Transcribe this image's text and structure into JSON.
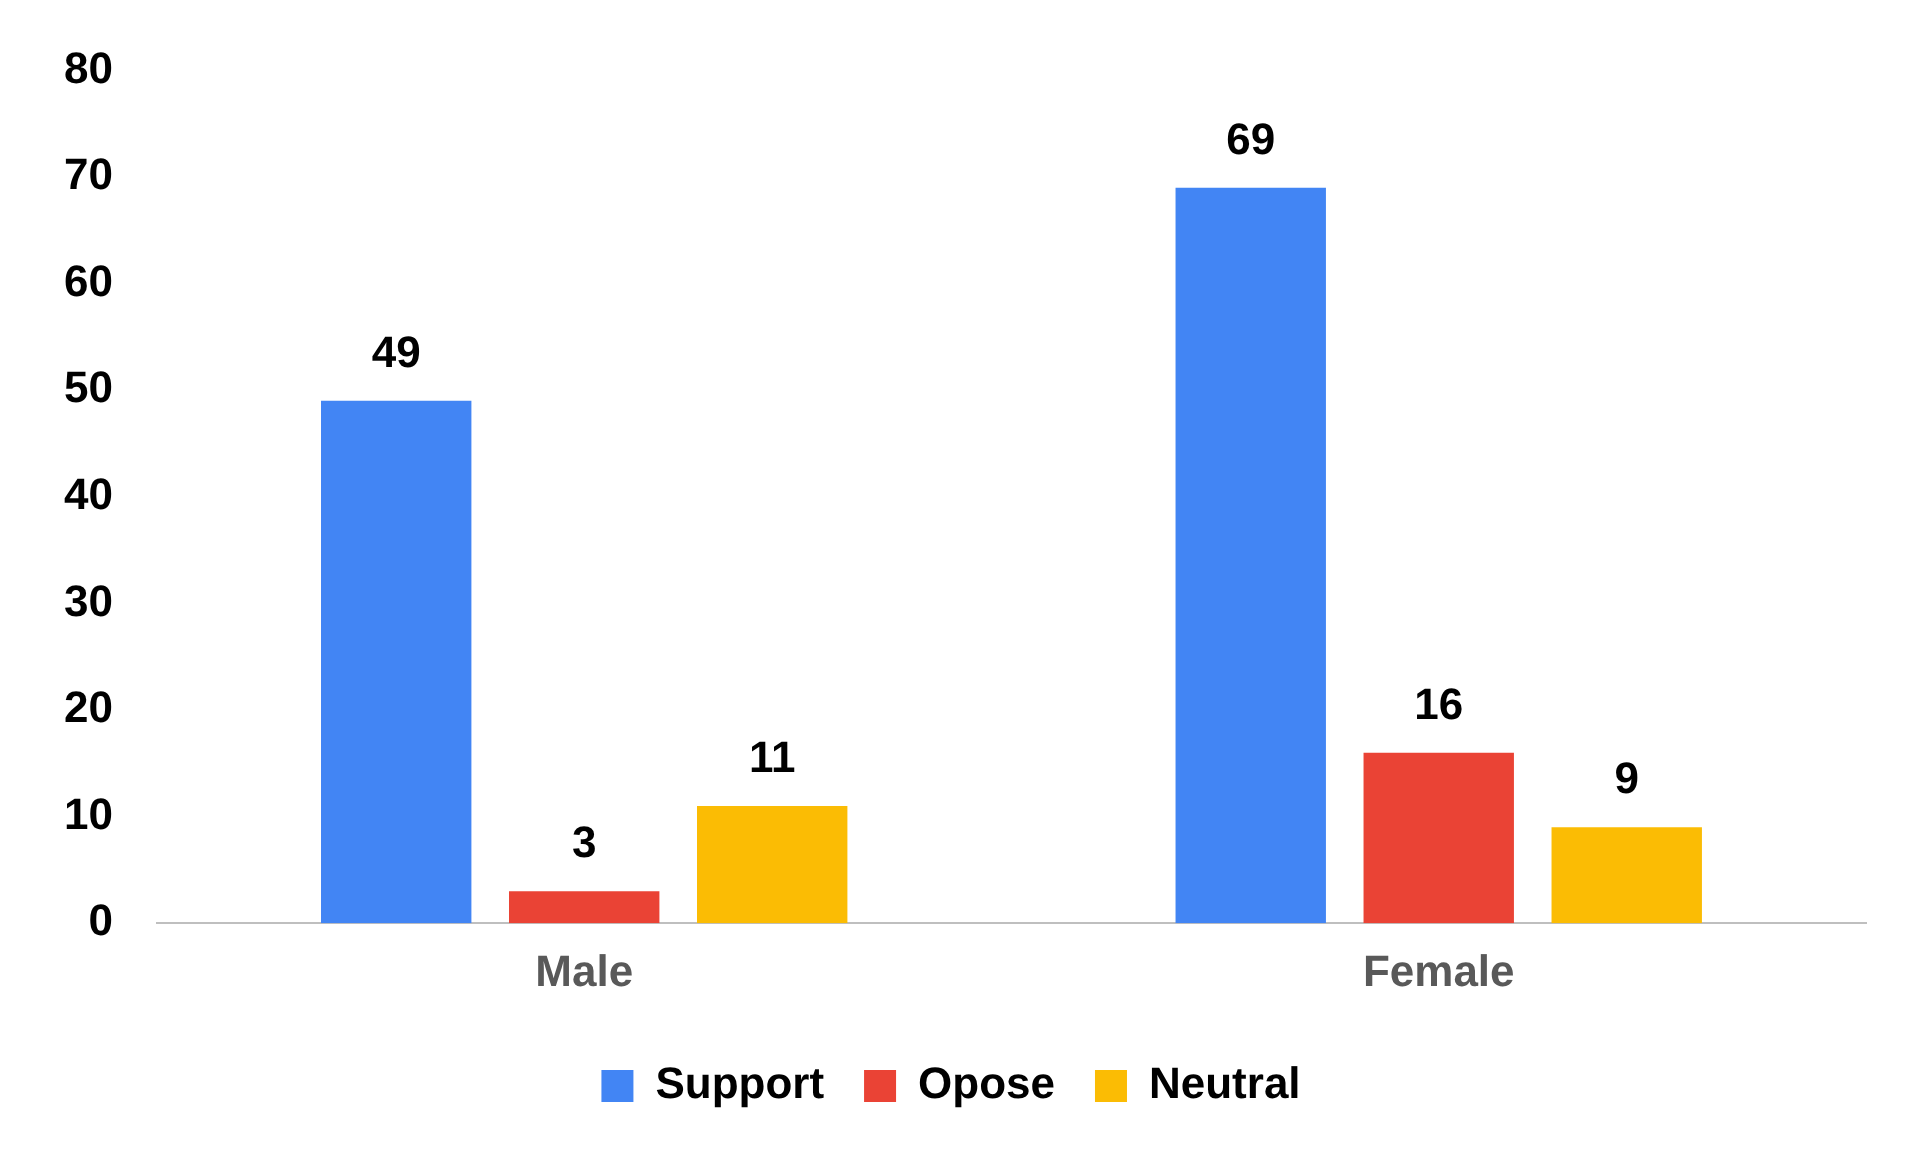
{
  "chart_data": {
    "type": "bar",
    "categories": [
      "Male",
      "Female"
    ],
    "series": [
      {
        "name": "Support",
        "color": "#4285f4",
        "values": [
          49,
          69
        ]
      },
      {
        "name": "Opose",
        "color": "#ea4335",
        "values": [
          3,
          16
        ]
      },
      {
        "name": "Neutral",
        "color": "#fbbc04",
        "values": [
          11,
          9
        ]
      }
    ],
    "ylim": [
      0,
      80
    ],
    "yticks": [
      0,
      10,
      20,
      30,
      40,
      50,
      60,
      70,
      80
    ],
    "grid": false,
    "legend": "bottom",
    "data_labels": true
  }
}
